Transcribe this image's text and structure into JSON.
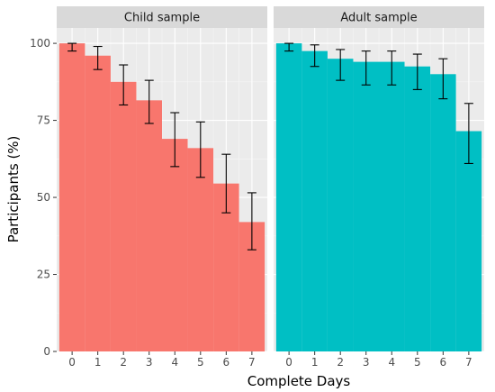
{
  "chart_data": {
    "type": "bar",
    "xlabel": "Complete Days",
    "ylabel": "Participants (%)",
    "ylim": [
      0,
      105
    ],
    "yticks": [
      0,
      25,
      50,
      75,
      100
    ],
    "categories": [
      "0",
      "1",
      "2",
      "3",
      "4",
      "5",
      "6",
      "7"
    ],
    "grid": true,
    "error_bars": true,
    "panels": [
      {
        "name": "Child sample",
        "color": "#F8766D",
        "values": [
          100,
          96,
          87.5,
          81.5,
          69,
          66,
          54.5,
          42
        ],
        "err_low": [
          97.5,
          91.5,
          80,
          74,
          60,
          56.5,
          45,
          33
        ],
        "err_high": [
          100,
          99,
          93,
          88,
          77.5,
          74.5,
          64,
          51.5
        ]
      },
      {
        "name": "Adult sample",
        "color": "#00BFC4",
        "values": [
          100,
          97.5,
          95,
          94,
          94,
          92.5,
          90,
          71.5
        ],
        "err_low": [
          97.5,
          92.5,
          88,
          86.5,
          86.5,
          85,
          82,
          61
        ],
        "err_high": [
          100,
          99.5,
          98,
          97.5,
          97.5,
          96.5,
          95,
          80.5
        ]
      }
    ]
  }
}
